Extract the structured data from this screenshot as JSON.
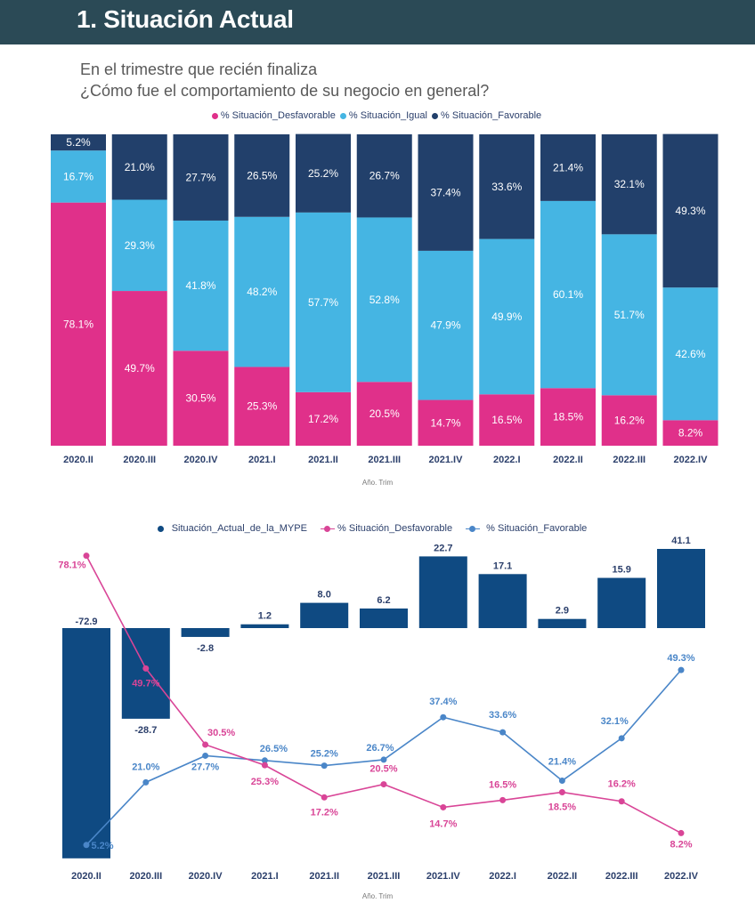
{
  "header": {
    "title": "1. Situación Actual"
  },
  "question": {
    "line1": "En el trimestre que recién finaliza",
    "line2": "¿Cómo fue el comportamiento de su negocio en general?"
  },
  "colors": {
    "desfavorable": "#e0308a",
    "igual": "#45b5e3",
    "favorable": "#22406b",
    "mype_bar": "#0f4a82",
    "line_desfavorable": "#d94597",
    "line_favorable": "#4a86c8",
    "axis_label": "#2b3f6b"
  },
  "chart_data": [
    {
      "type": "bar",
      "stacked": true,
      "percent_stacked": true,
      "title": "",
      "xlabel": "Año. Trim",
      "ylabel": "",
      "legend_position": "top-center",
      "categories": [
        "2020.II",
        "2020.III",
        "2020.IV",
        "2021.I",
        "2021.II",
        "2021.III",
        "2021.IV",
        "2022.I",
        "2022.II",
        "2022.III",
        "2022.IV"
      ],
      "series": [
        {
          "name": "% Situación_Desfavorable",
          "values": [
            78.1,
            49.7,
            30.5,
            25.3,
            17.2,
            20.5,
            14.7,
            16.5,
            18.5,
            16.2,
            8.2
          ]
        },
        {
          "name": "% Situación_Igual",
          "values": [
            16.7,
            29.3,
            41.8,
            48.2,
            57.7,
            52.8,
            47.9,
            49.9,
            60.1,
            51.7,
            42.6
          ]
        },
        {
          "name": "% Situación_Favorable",
          "values": [
            5.2,
            21.0,
            27.7,
            26.5,
            25.2,
            26.7,
            37.4,
            33.6,
            21.4,
            32.1,
            49.3
          ]
        }
      ],
      "ylim": [
        0,
        100
      ]
    },
    {
      "type": "bar",
      "combo": "bar+line",
      "title": "",
      "xlabel": "Año. Trim",
      "ylabel": "",
      "legend_position": "top-center",
      "categories": [
        "2020.II",
        "2020.III",
        "2020.IV",
        "2021.I",
        "2021.II",
        "2021.III",
        "2021.IV",
        "2022.I",
        "2022.II",
        "2022.III",
        "2022.IV"
      ],
      "series": [
        {
          "name": "Situación_Actual_de_la_MYPE",
          "kind": "bar",
          "values": [
            -72.9,
            -28.7,
            -2.8,
            1.2,
            8.0,
            6.2,
            22.7,
            17.1,
            2.9,
            15.9,
            41.1
          ]
        },
        {
          "name": "% Situación_Desfavorable",
          "kind": "line",
          "values": [
            78.1,
            49.7,
            30.5,
            25.3,
            17.2,
            20.5,
            14.7,
            16.5,
            18.5,
            16.2,
            8.2
          ]
        },
        {
          "name": "% Situación_Favorable",
          "kind": "line",
          "values": [
            5.2,
            21.0,
            27.7,
            26.5,
            25.2,
            26.7,
            37.4,
            33.6,
            21.4,
            32.1,
            49.3
          ]
        }
      ]
    }
  ]
}
